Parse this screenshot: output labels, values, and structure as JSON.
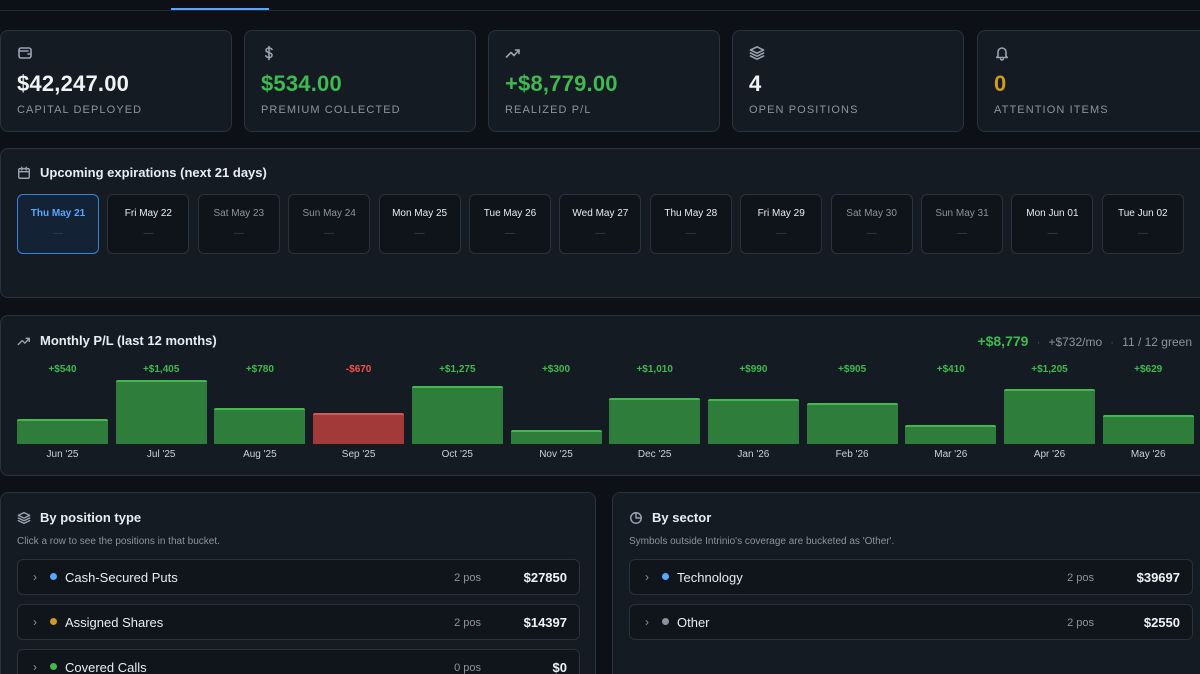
{
  "stats": [
    {
      "icon": "wallet-icon",
      "value": "$42,247.00",
      "label": "CAPITAL DEPLOYED",
      "tone": "white"
    },
    {
      "icon": "dollar-icon",
      "value": "$534.00",
      "label": "PREMIUM COLLECTED",
      "tone": "green"
    },
    {
      "icon": "trending-up-icon",
      "value": "+$8,779.00",
      "label": "REALIZED P/L",
      "tone": "green"
    },
    {
      "icon": "layers-icon",
      "value": "4",
      "label": "OPEN POSITIONS",
      "tone": "white"
    },
    {
      "icon": "bell-icon",
      "value": "0",
      "label": "ATTENTION ITEMS",
      "tone": "orange"
    }
  ],
  "expirations": {
    "title": "Upcoming expirations (next 21 days)",
    "days": [
      {
        "label": "Thu May 21",
        "value": "—",
        "today": true
      },
      {
        "label": "Fri May 22",
        "value": "—"
      },
      {
        "label": "Sat May 23",
        "value": "—",
        "weekend": true
      },
      {
        "label": "Sun May 24",
        "value": "—",
        "weekend": true
      },
      {
        "label": "Mon May 25",
        "value": "—"
      },
      {
        "label": "Tue May 26",
        "value": "—"
      },
      {
        "label": "Wed May 27",
        "value": "—"
      },
      {
        "label": "Thu May 28",
        "value": "—"
      },
      {
        "label": "Fri May 29",
        "value": "—"
      },
      {
        "label": "Sat May 30",
        "value": "—",
        "weekend": true
      },
      {
        "label": "Sun May 31",
        "value": "—",
        "weekend": true
      },
      {
        "label": "Mon Jun 01",
        "value": "—"
      },
      {
        "label": "Tue Jun 02",
        "value": "—"
      }
    ]
  },
  "monthly_pl": {
    "title": "Monthly P/L (last 12 months)",
    "total": "+$8,779",
    "average": "+$732/mo",
    "green_count": "11 / 12 green"
  },
  "chart_data": {
    "type": "bar",
    "title": "Monthly P/L (last 12 months)",
    "categories": [
      "Jun '25",
      "Jul '25",
      "Aug '25",
      "Sep '25",
      "Oct '25",
      "Nov '25",
      "Dec '25",
      "Jan '26",
      "Feb '26",
      "Mar '26",
      "Apr '26",
      "May '26"
    ],
    "values": [
      540,
      1405,
      780,
      -670,
      1275,
      300,
      1010,
      990,
      905,
      410,
      1205,
      629
    ],
    "labels": [
      "+$540",
      "+$1,405",
      "+$780",
      "-$670",
      "+$1,275",
      "+$300",
      "+$1,010",
      "+$990",
      "+$905",
      "+$410",
      "+$1,205",
      "+$629"
    ],
    "colors": {
      "positive": "#2e7d3a",
      "negative": "#a33a3a"
    }
  },
  "by_position_type": {
    "title": "By position type",
    "subtitle": "Click a row to see the positions in that bucket.",
    "rows": [
      {
        "name": "Cash-Secured Puts",
        "count": "2 pos",
        "amount": "$27850",
        "color": "#58a6ff"
      },
      {
        "name": "Assigned Shares",
        "count": "2 pos",
        "amount": "$14397",
        "color": "#d29922"
      },
      {
        "name": "Covered Calls",
        "count": "0 pos",
        "amount": "$0",
        "color": "#3fb950"
      }
    ]
  },
  "by_sector": {
    "title": "By sector",
    "subtitle": "Symbols outside Intrinio's coverage are bucketed as 'Other'.",
    "rows": [
      {
        "name": "Technology",
        "count": "2 pos",
        "amount": "$39697",
        "color": "#58a6ff"
      },
      {
        "name": "Other",
        "count": "2 pos",
        "amount": "$2550",
        "color": "#8b949e"
      }
    ]
  }
}
